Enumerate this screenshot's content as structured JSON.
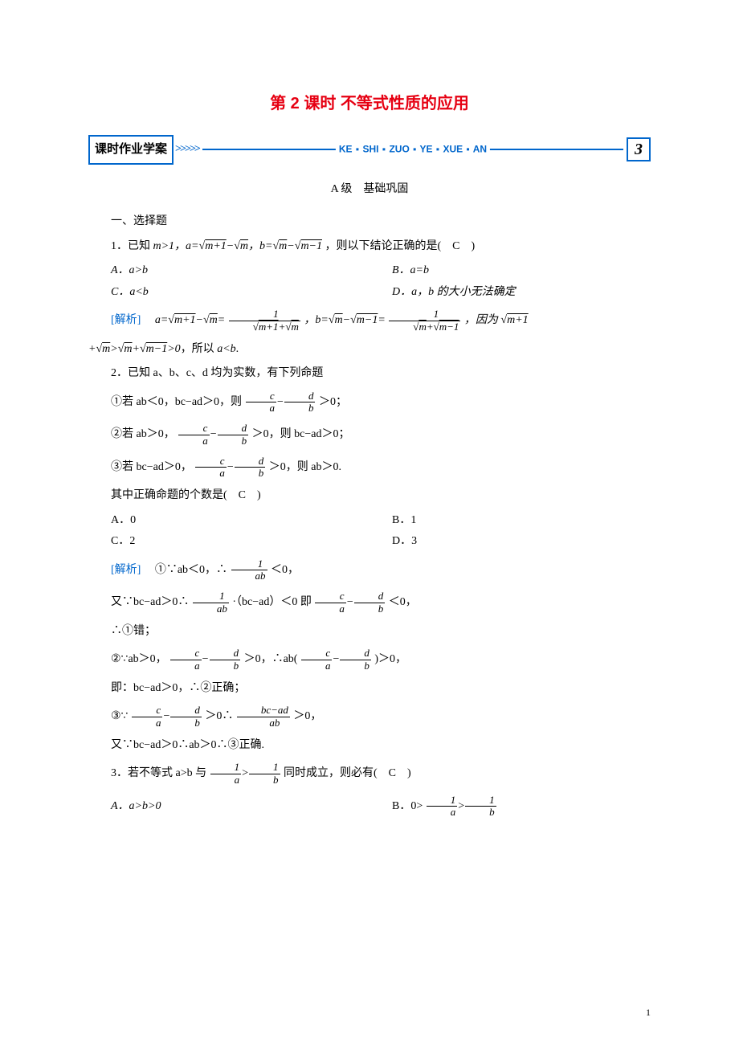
{
  "title": "第 2 课时 不等式性质的应用",
  "bar": {
    "left_label": "课时作业学案",
    "pinyin_words": [
      "KE",
      "SHI",
      "ZUO",
      "YE",
      "XUE",
      "AN"
    ],
    "right_num": "3"
  },
  "level_line": "A 级　基础巩固",
  "section1": "一、选择题",
  "q1": {
    "stem_pre": "1．已知 ",
    "stem_mid": "m>1，a=√(m+1)−√m，b=√m−√(m−1)",
    "stem_post": "，则以下结论正确的是(　C　)",
    "optA": "A．a>b",
    "optB": "B．a=b",
    "optC": "C．a<b",
    "optD": "D．a，b 的大小无法确定",
    "analysis_label": "[解析]",
    "analysis_l1_pre": "　a=√(m+1)−√m=",
    "analysis_l1_mid": "，b=√m−√(m−1)=",
    "analysis_l1_post": "，因为 √(m+1)",
    "analysis_l2": "+√m>√m+√(m−1)>0，所以 a<b."
  },
  "q2": {
    "stem": "2．已知 a、b、c、d 均为实数，有下列命题",
    "p1_pre": "①若 ab＜0，bc−ad＞0，则",
    "p1_post": "＞0；",
    "p2_pre": "②若 ab＞0，",
    "p2_mid": "＞0，则 bc−ad＞0；",
    "p3_pre": "③若 bc−ad＞0，",
    "p3_mid": "＞0，则 ab＞0.",
    "count_q": "其中正确命题的个数是(　C　)",
    "optA": "A．0",
    "optB": "B．1",
    "optC": "C．2",
    "optD": "D．3",
    "analysis_label": "[解析]",
    "a1_pre": "　①∵ab＜0，∴",
    "a1_post": "＜0，",
    "a2_pre": "又∵bc−ad＞0∴",
    "a2_mid": "·（bc−ad）＜0 即",
    "a2_post": "＜0，",
    "a3": "∴①错；",
    "a4_pre": "②∵ab＞0，",
    "a4_mid": "＞0，∴ab(",
    "a4_post": ")＞0，",
    "a5": "即：bc−ad＞0，∴②正确；",
    "a6_pre": "③∵",
    "a6_mid": "＞0∴",
    "a6_post": "＞0，",
    "a7": "又∵bc−ad＞0∴ab＞0∴③正确."
  },
  "q3": {
    "stem_pre": "3．若不等式 a>b 与",
    "stem_post": "同时成立，则必有(　C　)",
    "optA": "A．a>b>0",
    "optB_pre": "B．0>",
    "optB_post": ""
  },
  "fracs": {
    "one": "1",
    "ab": "ab",
    "c": "c",
    "d": "d",
    "a": "a",
    "b": "b",
    "bc_ad": "bc−ad",
    "sqrt_mp1_m": "√(m+1)+√m",
    "sqrt_m_mm1": "√m+√(m−1)"
  },
  "page_number": "1"
}
